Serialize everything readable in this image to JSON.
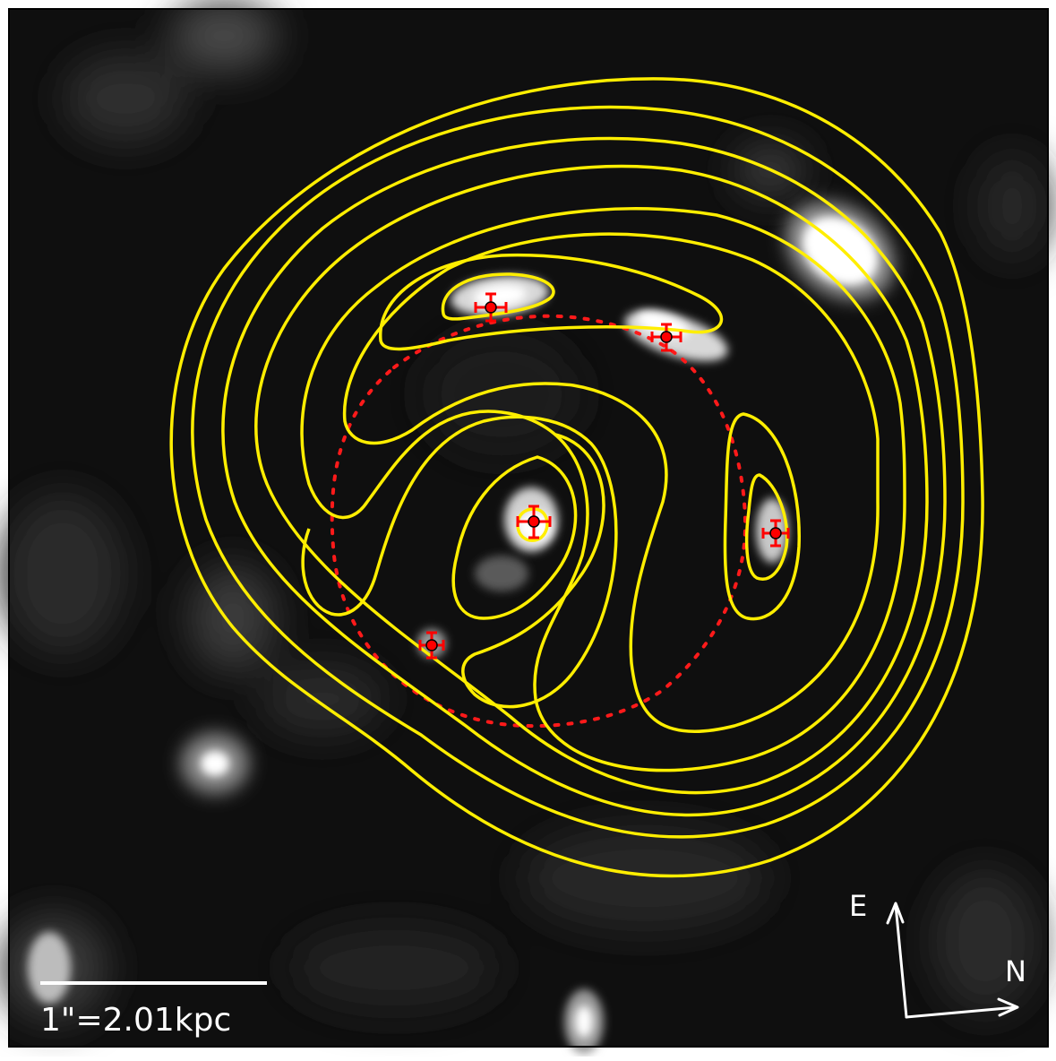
{
  "scale_bar": {
    "label": "1\"=2.01kpc"
  },
  "compass": {
    "east_label": "E",
    "north_label": "N"
  },
  "colors": {
    "contour": "#ffee00",
    "critical_curve": "#ff1a1a",
    "marker": "#ff0000",
    "annotation": "#ffffff",
    "frame": "#000000"
  },
  "lensed_images": [
    {
      "id": "image-1"
    },
    {
      "id": "image-2"
    },
    {
      "id": "image-3"
    },
    {
      "id": "image-4"
    },
    {
      "id": "image-5"
    }
  ]
}
